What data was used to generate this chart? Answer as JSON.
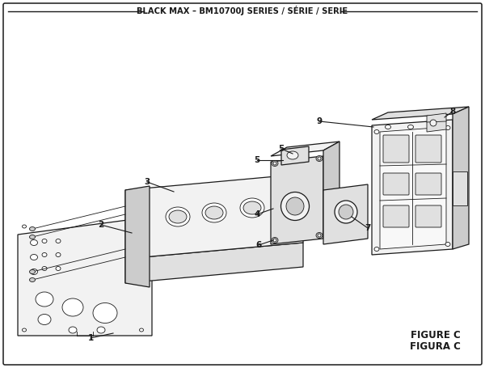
{
  "title": "BLACK MAX – BM10700J SERIES / SÉRIE / SERIE",
  "figure_label": "FIGURE C",
  "figura_label": "FIGURA C",
  "bg_color": "#ffffff",
  "line_color": "#1a1a1a",
  "text_color": "#1a1a1a",
  "fill_light": "#f2f2f2",
  "fill_mid": "#e0e0e0",
  "fill_dark": "#cccccc"
}
